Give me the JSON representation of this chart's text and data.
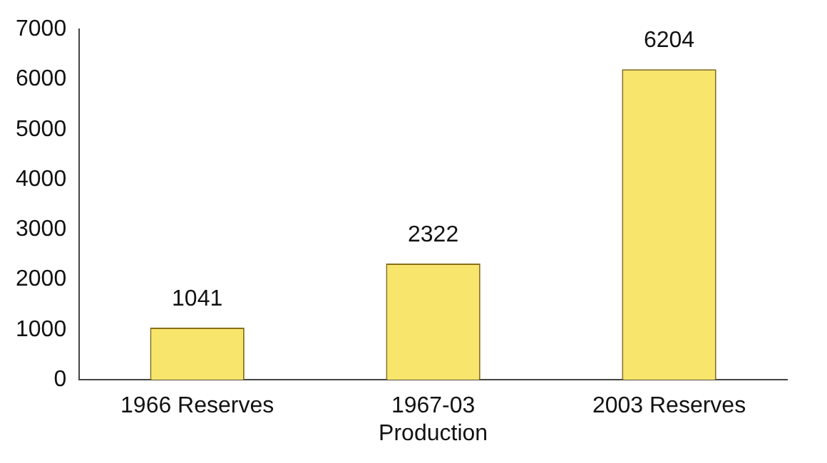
{
  "chart_data": {
    "type": "bar",
    "categories": [
      "1966 Reserves",
      "1967-03\nProduction",
      "2003 Reserves"
    ],
    "values": [
      1041,
      2322,
      6204
    ],
    "color": "#f7e66b",
    "ylim": [
      0,
      7000
    ],
    "yticks": [
      0,
      1000,
      2000,
      3000,
      4000,
      5000,
      6000,
      7000
    ],
    "grid": false,
    "data_labels": true,
    "legend": false
  }
}
